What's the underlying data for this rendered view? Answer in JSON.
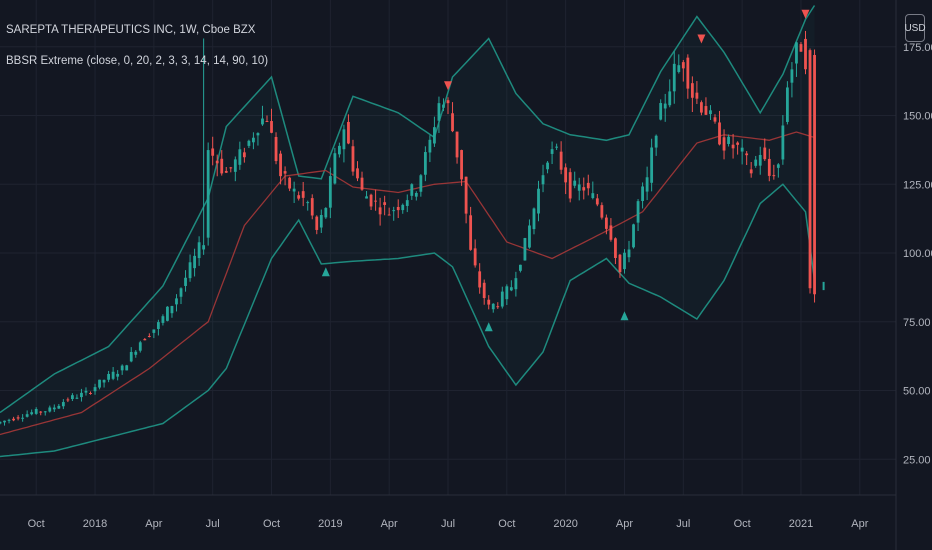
{
  "header": {
    "symbol_title": "SAREPTA THERAPEUTICS INC, 1W, Cboe BZX",
    "indicator_label": "BBSR Extreme (close, 0, 20, 2, 3, 3, 14, 14, 90, 10)",
    "currency_badge": "USD"
  },
  "colors": {
    "background": "#131722",
    "grid": "#1f2330",
    "up_candle": "#26a69a",
    "down_candle": "#ef5350",
    "bands": "#1e8a7e",
    "basis": "#b03a3a",
    "buy_signal": "#26a69a",
    "sell_signal": "#ef5350",
    "axis_text": "#b2b5be"
  },
  "chart_data": {
    "type": "candlestick",
    "y_ticks": [
      "25.00",
      "50.00",
      "75.00",
      "100.00",
      "125.00",
      "150.00",
      "175.00"
    ],
    "y_tick_values": [
      25,
      50,
      75,
      100,
      125,
      150,
      175
    ],
    "ylim": [
      12,
      192
    ],
    "x_ticks": [
      "Oct",
      "2018",
      "Apr",
      "Jul",
      "Oct",
      "2019",
      "Apr",
      "Jul",
      "Oct",
      "2020",
      "Apr",
      "Jul",
      "Oct",
      "2021",
      "Apr"
    ],
    "x_tick_index": [
      0,
      13,
      26,
      39,
      52,
      65,
      78,
      91,
      104,
      117,
      130,
      143,
      156,
      169,
      182
    ],
    "xlim_index": [
      -8,
      190
    ],
    "grid": true,
    "price_anchors": [
      [
        -8,
        38
      ],
      [
        -4,
        40
      ],
      [
        0,
        42
      ],
      [
        4,
        43
      ],
      [
        8,
        47
      ],
      [
        12,
        49
      ],
      [
        16,
        54
      ],
      [
        20,
        58
      ],
      [
        24,
        68
      ],
      [
        28,
        74
      ],
      [
        32,
        84
      ],
      [
        36,
        98
      ],
      [
        38,
        105
      ],
      [
        39,
        138
      ],
      [
        43,
        129
      ],
      [
        47,
        137
      ],
      [
        50,
        147
      ],
      [
        52,
        150
      ],
      [
        53,
        142
      ],
      [
        55,
        128
      ],
      [
        58,
        122
      ],
      [
        61,
        118
      ],
      [
        63,
        108
      ],
      [
        65,
        117
      ],
      [
        67,
        134
      ],
      [
        69,
        146
      ],
      [
        71,
        132
      ],
      [
        73,
        122
      ],
      [
        76,
        118
      ],
      [
        79,
        115
      ],
      [
        82,
        119
      ],
      [
        85,
        124
      ],
      [
        88,
        140
      ],
      [
        90,
        155
      ],
      [
        92,
        153
      ],
      [
        95,
        128
      ],
      [
        97,
        100
      ],
      [
        99,
        88
      ],
      [
        101,
        80
      ],
      [
        103,
        82
      ],
      [
        106,
        88
      ],
      [
        109,
        103
      ],
      [
        112,
        123
      ],
      [
        114,
        136
      ],
      [
        116,
        136
      ],
      [
        119,
        123
      ],
      [
        122,
        124
      ],
      [
        125,
        118
      ],
      [
        128,
        107
      ],
      [
        130,
        93
      ],
      [
        132,
        103
      ],
      [
        134,
        118
      ],
      [
        136,
        126
      ],
      [
        138,
        146
      ],
      [
        140,
        156
      ],
      [
        142,
        166
      ],
      [
        144,
        170
      ],
      [
        146,
        158
      ],
      [
        149,
        152
      ],
      [
        151,
        145
      ],
      [
        153,
        140
      ],
      [
        156,
        138
      ],
      [
        159,
        130
      ],
      [
        161,
        137
      ],
      [
        163,
        128
      ],
      [
        165,
        132
      ],
      [
        167,
        162
      ],
      [
        169,
        173
      ],
      [
        170,
        176
      ],
      [
        171,
        171
      ],
      [
        172,
        85
      ]
    ],
    "band_anchors": [
      [
        -8,
        42,
        26
      ],
      [
        4,
        56,
        28
      ],
      [
        16,
        66,
        33
      ],
      [
        28,
        88,
        38
      ],
      [
        38,
        120,
        50
      ],
      [
        42,
        146,
        58
      ],
      [
        52,
        164,
        98
      ],
      [
        58,
        128,
        112
      ],
      [
        63,
        127,
        96
      ],
      [
        70,
        157,
        97
      ],
      [
        80,
        151,
        98
      ],
      [
        88,
        142,
        100
      ],
      [
        92,
        164,
        95
      ],
      [
        100,
        178,
        66
      ],
      [
        106,
        158,
        52
      ],
      [
        112,
        147,
        64
      ],
      [
        118,
        143,
        90
      ],
      [
        126,
        141,
        98
      ],
      [
        131,
        143,
        89
      ],
      [
        138,
        166,
        84
      ],
      [
        146,
        186,
        76
      ],
      [
        152,
        173,
        90
      ],
      [
        160,
        151,
        118
      ],
      [
        165,
        165,
        125
      ],
      [
        170,
        185,
        115
      ],
      [
        172,
        190,
        90
      ]
    ],
    "basis_anchors": [
      [
        -8,
        34
      ],
      [
        10,
        42
      ],
      [
        25,
        58
      ],
      [
        38,
        75
      ],
      [
        46,
        110
      ],
      [
        55,
        128
      ],
      [
        64,
        130
      ],
      [
        70,
        124
      ],
      [
        80,
        122
      ],
      [
        88,
        125
      ],
      [
        95,
        126
      ],
      [
        104,
        104
      ],
      [
        114,
        98
      ],
      [
        126,
        108
      ],
      [
        134,
        115
      ],
      [
        146,
        140
      ],
      [
        152,
        143
      ],
      [
        162,
        141
      ],
      [
        168,
        144
      ],
      [
        172,
        142
      ]
    ],
    "spike": {
      "index": 37,
      "high": 178
    },
    "final_drop": {
      "index": 172,
      "open": 172,
      "close": 85,
      "high": 174,
      "low": 82
    },
    "last_price": {
      "index": 174,
      "value": 88
    },
    "buy_signals": [
      {
        "index": 64,
        "value": 93
      },
      {
        "index": 100,
        "value": 73
      },
      {
        "index": 130,
        "value": 77
      }
    ],
    "sell_signals": [
      {
        "index": 91,
        "value": 161
      },
      {
        "index": 147,
        "value": 178
      },
      {
        "index": 170,
        "value": 187
      }
    ]
  }
}
